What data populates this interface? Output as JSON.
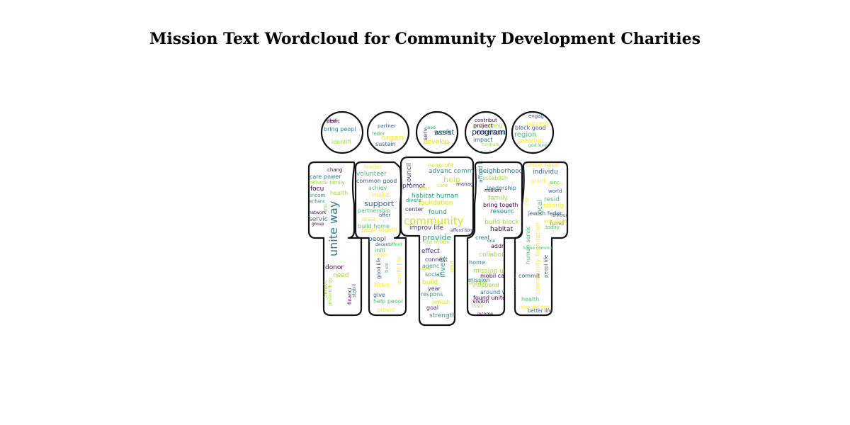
{
  "title": "Mission Text Wordcloud for Community Development Charities",
  "palette": [
    "#440154",
    "#46327e",
    "#365c8d",
    "#277f8e",
    "#1fa187",
    "#4ac16d",
    "#a0da39",
    "#d5e21a",
    "#fde725"
  ],
  "figures": [
    {
      "id": "figure-1",
      "words": [
        "plan",
        "bring peopl",
        "identifi",
        "chang",
        "care power",
        "individu family",
        "focu",
        "incom",
        "health",
        "network",
        "servic",
        "need",
        "donor",
        "unite way",
        "philanthrop",
        "financi",
        "stabil",
        "benefit",
        "group",
        "enhanc",
        "affili",
        "dedic"
      ]
    },
    {
      "id": "figure-2",
      "words": [
        "partner",
        "feder",
        "organ",
        "sustain",
        "volunteer",
        "leader",
        "common good",
        "achiev",
        "make",
        "support",
        "partnership",
        "area",
        "offer",
        "build home",
        "peopl togeth",
        "peopl",
        "initi",
        "hous",
        "good life",
        "busi",
        "qualiti life",
        "give",
        "help peopl",
        "provid",
        "decent",
        "afford",
        "citizen"
      ]
    },
    {
      "id": "figure-3",
      "words": [
        "work",
        "develop",
        "serv",
        "need",
        "nonprofit",
        "council",
        "advanc common",
        "help",
        "promot",
        "habitat human",
        "foundation",
        "center",
        "found",
        "community",
        "improv life",
        "provide",
        "life mobil",
        "effect",
        "invest",
        "solut",
        "connect",
        "social",
        "build",
        "year",
        "respons",
        "jewish",
        "goal",
        "strengthen",
        "effect",
        "afford home",
        "divers",
        "care",
        "manag",
        "agenc",
        "activ",
        "assist"
      ]
    },
    {
      "id": "figure-4",
      "words": [
        "last chang",
        "program",
        "impact",
        "fundrais",
        "contribut",
        "neighborhood",
        "establish",
        "million",
        "leadership",
        "family",
        "bring togeth",
        "resourc",
        "build block",
        "habitat",
        "creat",
        "collabor",
        "address",
        "home",
        "mission unite",
        "mobil care",
        "mission",
        "independ",
        "found unite",
        "around world",
        "issu",
        "vision",
        "afford hous",
        "provide",
        "income",
        "one",
        "everyon",
        "project",
        "community"
      ]
    },
    {
      "id": "figure-5",
      "words": [
        "success",
        "block good",
        "region",
        "opportun",
        "engag",
        "god love",
        "servic need",
        "individu",
        "local",
        "grant",
        "world",
        "resid",
        "strong",
        "jewish feder",
        "fund",
        "educate",
        "throughout",
        "human servic",
        "community foundation",
        "peopl life",
        "today",
        "citi",
        "commit",
        "health",
        "low incom",
        "better life",
        "sinc",
        "power",
        "mission",
        "home community"
      ]
    }
  ]
}
